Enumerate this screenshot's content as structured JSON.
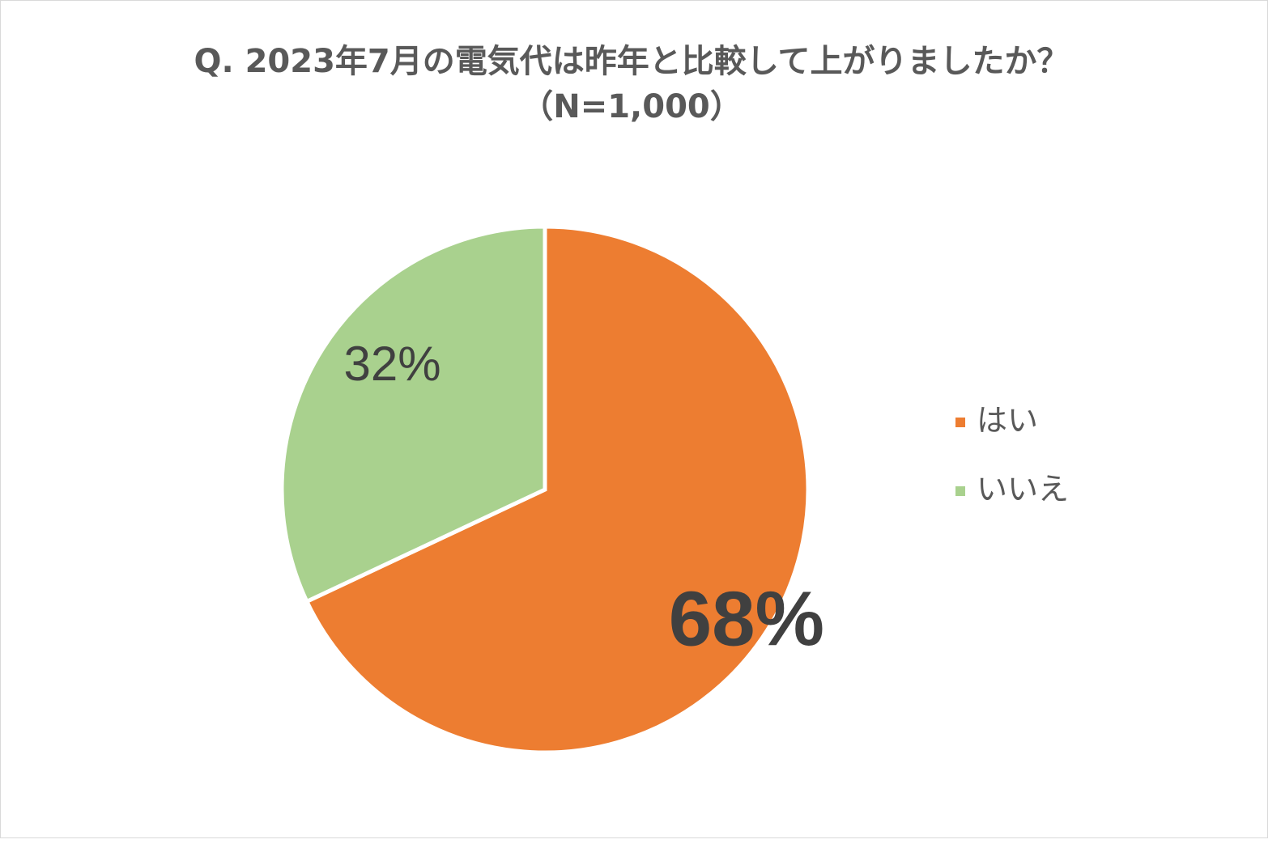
{
  "chart_data": {
    "type": "pie",
    "title": "Q. 2023年7月の電気代は昨年と比較して上がりましたか？（N=1,000）",
    "categories": [
      "はい",
      "いいえ"
    ],
    "values": [
      68,
      32
    ],
    "value_labels": [
      "68%",
      "32%"
    ],
    "colors": [
      "#ed7d31",
      "#a9d18e"
    ],
    "legend": "right"
  }
}
